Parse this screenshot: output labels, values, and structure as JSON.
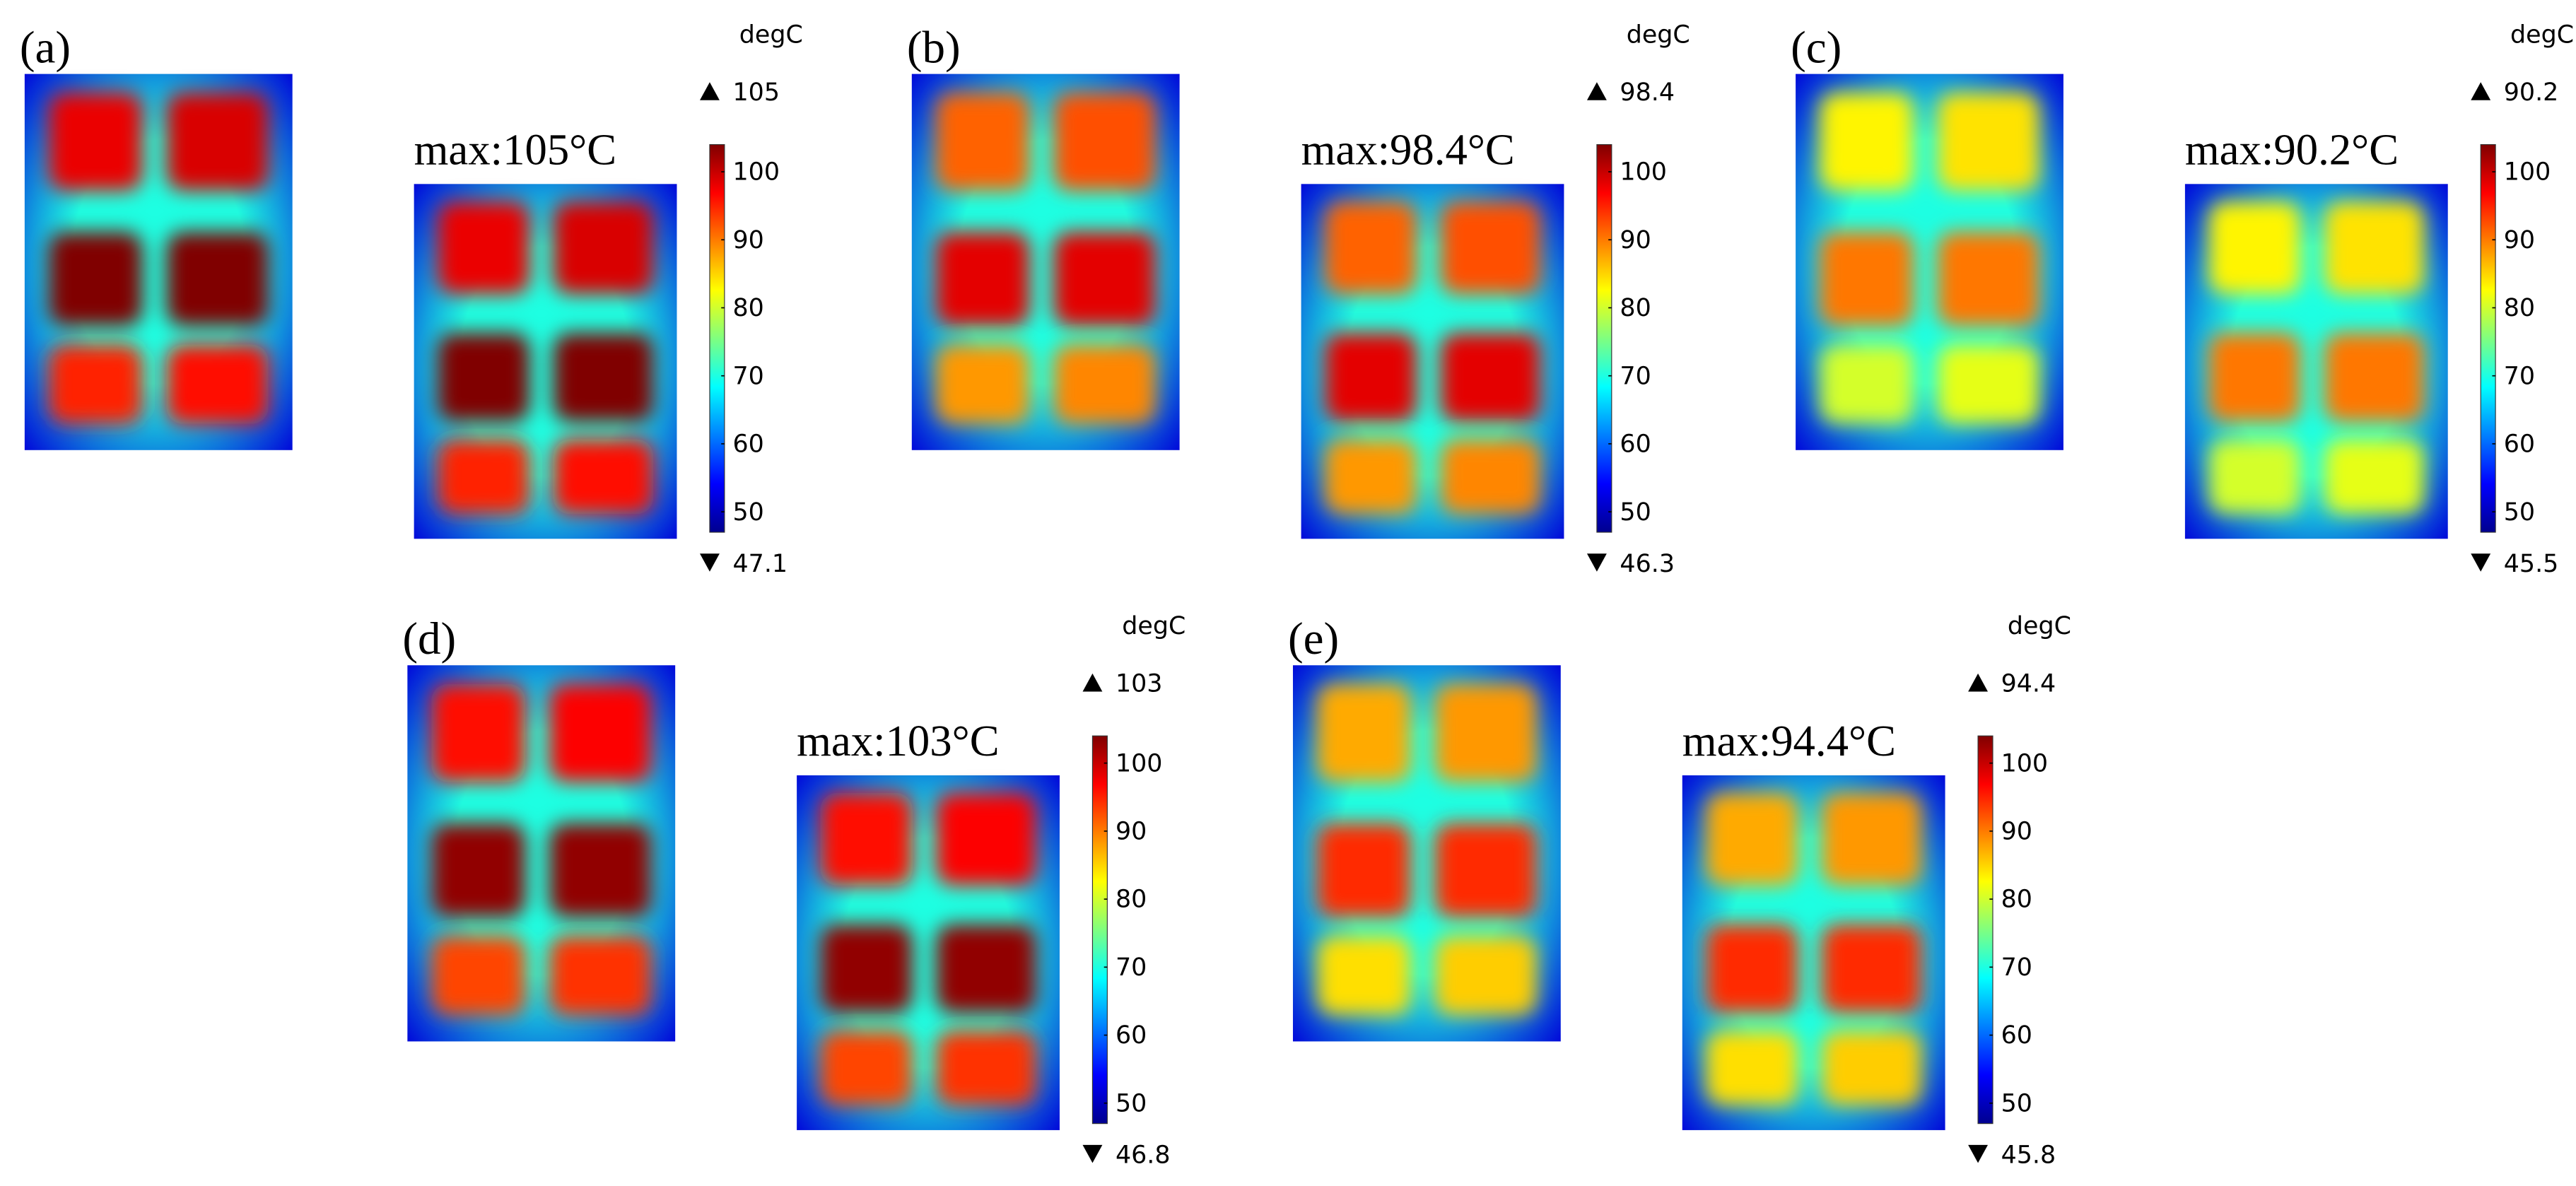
{
  "colorbar": {
    "lim": [
      47,
      104
    ],
    "ticks": [
      50,
      60,
      70,
      80,
      90,
      100
    ]
  },
  "panels": [
    {
      "label": "(a)",
      "max_text": "max:105°C",
      "unit": "degC",
      "max": 105,
      "min": 47.1
    },
    {
      "label": "(b)",
      "max_text": "max:98.4°C",
      "unit": "degC",
      "max": 98.4,
      "min": 46.3
    },
    {
      "label": "(c)",
      "max_text": "max:90.2°C",
      "unit": "degC",
      "max": 90.2,
      "min": 45.5
    },
    {
      "label": "(d)",
      "max_text": "max:103°C",
      "unit": "degC",
      "max": 103,
      "min": 46.8
    },
    {
      "label": "(e)",
      "max_text": "max:94.4°C",
      "unit": "degC",
      "max": 94.4,
      "min": 45.8
    }
  ]
}
